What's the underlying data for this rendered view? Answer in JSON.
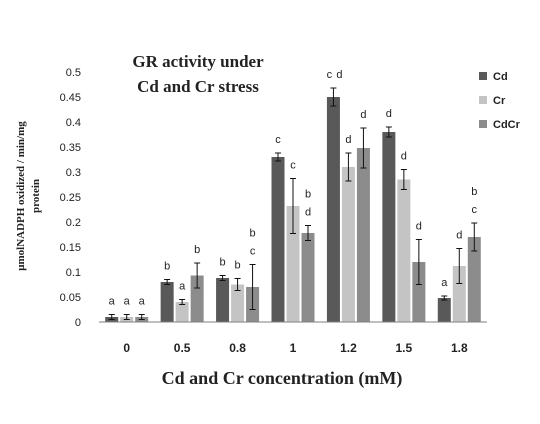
{
  "chart_data": {
    "type": "bar",
    "title_lines": [
      "GR activity under",
      "Cd and Cr stress"
    ],
    "xlabel": "Cd and Cr concentration (mM)",
    "ylabel_lines": [
      "μmolNADPH oxidized / min/mg",
      "protein"
    ],
    "categories": [
      "0",
      "0.5",
      "0.8",
      "1",
      "1.2",
      "1.5",
      "1.8"
    ],
    "ylim": [
      0,
      0.5
    ],
    "yticks": [
      "0",
      "0.05",
      "0.1",
      "0.15",
      "0.2",
      "0.25",
      "0.3",
      "0.35",
      "0.4",
      "0.45",
      "0.5"
    ],
    "legend_position": "top-right",
    "series": [
      {
        "name": "Cd",
        "color": "#595959",
        "values": [
          0.01,
          0.08,
          0.088,
          0.33,
          0.45,
          0.38,
          0.048
        ],
        "errors": [
          0.005,
          0.005,
          0.005,
          0.008,
          0.018,
          0.01,
          0.004
        ],
        "letters": [
          "a",
          "b",
          "b",
          "c",
          "c d",
          "d",
          "a"
        ]
      },
      {
        "name": "Cr",
        "color": "#c4c4c4",
        "values": [
          0.01,
          0.04,
          0.075,
          0.232,
          0.31,
          0.285,
          0.112
        ],
        "errors": [
          0.005,
          0.005,
          0.012,
          0.055,
          0.028,
          0.02,
          0.035
        ],
        "letters": [
          "a",
          "a",
          "b",
          "c",
          "d",
          "d",
          "d"
        ]
      },
      {
        "name": "CdCr",
        "color": "#8c8c8c",
        "values": [
          0.01,
          0.093,
          0.07,
          0.178,
          0.348,
          0.12,
          0.17
        ],
        "errors": [
          0.005,
          0.025,
          0.045,
          0.015,
          0.04,
          0.045,
          0.028
        ],
        "letters": [
          "a",
          "b",
          "b c",
          "b d",
          "d",
          "d",
          "b c"
        ]
      }
    ]
  }
}
